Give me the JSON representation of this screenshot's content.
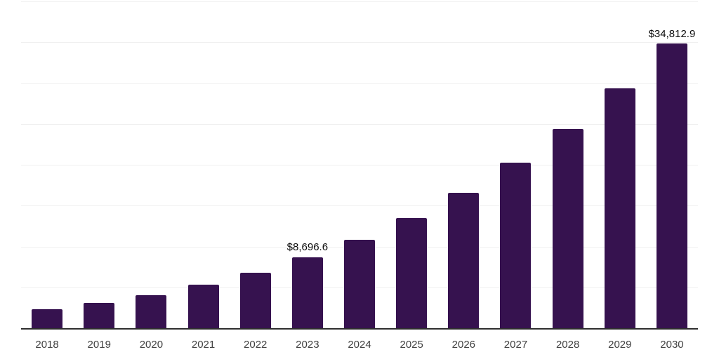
{
  "chart_data": {
    "type": "bar",
    "title": "",
    "xlabel": "",
    "ylabel": "",
    "categories": [
      "2018",
      "2019",
      "2020",
      "2021",
      "2022",
      "2023",
      "2024",
      "2025",
      "2026",
      "2027",
      "2028",
      "2029",
      "2030"
    ],
    "values": [
      2330,
      3100,
      4040,
      5300,
      6750,
      8696.6,
      10800,
      13500,
      16560,
      20260,
      24420,
      29340,
      34812.9
    ],
    "data_labels": {
      "2023": "$8,696.6",
      "2030": "$34,812.9"
    },
    "ylim": [
      0,
      40000
    ],
    "gridline_interval": 5000,
    "grid": true,
    "y_axis_tick_labels_visible": false,
    "legend_position": "none"
  },
  "style": {
    "background": "#ffffff",
    "bar_color": "#36124f",
    "gridline_color": "#f0f0f0",
    "axis_color": "#2e2e2e",
    "tick_label_color": "#3f3f3f",
    "data_label_color": "#0b0b0b"
  }
}
